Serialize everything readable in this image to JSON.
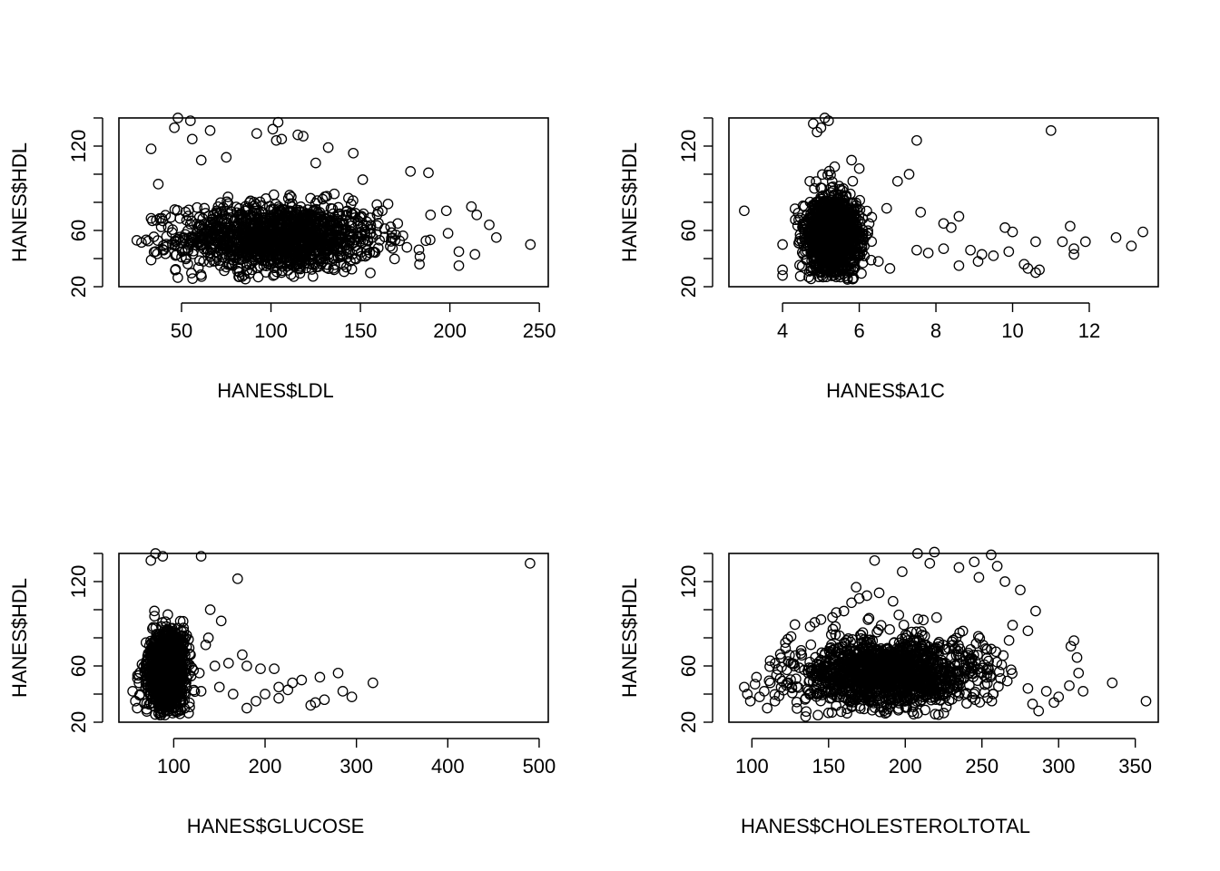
{
  "figure": {
    "background": "#ffffff",
    "ink": "#000000"
  },
  "chart_data": [
    {
      "type": "scatter",
      "xlabel": "HANES$LDL",
      "ylabel": "HANES$HDL",
      "xlim": [
        15,
        255
      ],
      "ylim": [
        20,
        140
      ],
      "xticks": [
        50,
        100,
        150,
        200,
        250
      ],
      "yticks": [
        20,
        60,
        120
      ],
      "ygrid_ticks": [
        20,
        40,
        60,
        80,
        100,
        120,
        140
      ],
      "cluster": {
        "x_mean": 105,
        "x_sd": 28,
        "x_min": 25,
        "x_max": 190,
        "y_mean": 55,
        "y_sd": 12,
        "y_min": 25,
        "y_max": 100,
        "n": 1400
      },
      "outliers": [
        [
          48,
          140
        ],
        [
          55,
          138
        ],
        [
          46,
          133
        ],
        [
          66,
          131
        ],
        [
          104,
          137
        ],
        [
          101,
          132
        ],
        [
          92,
          129
        ],
        [
          115,
          128
        ],
        [
          118,
          127
        ],
        [
          103,
          124
        ],
        [
          106,
          125
        ],
        [
          33,
          118
        ],
        [
          56,
          125
        ],
        [
          132,
          119
        ],
        [
          146,
          115
        ],
        [
          75,
          112
        ],
        [
          61,
          110
        ],
        [
          125,
          108
        ],
        [
          178,
          102
        ],
        [
          188,
          101
        ],
        [
          37,
          93
        ],
        [
          212,
          77
        ],
        [
          215,
          71
        ],
        [
          222,
          64
        ],
        [
          226,
          55
        ],
        [
          245,
          50
        ],
        [
          25,
          53
        ],
        [
          33,
          39
        ],
        [
          198,
          74
        ],
        [
          199,
          58
        ],
        [
          205,
          45
        ],
        [
          205,
          35
        ],
        [
          214,
          43
        ],
        [
          183,
          36
        ],
        [
          176,
          48
        ],
        [
          40,
          46
        ]
      ]
    },
    {
      "type": "scatter",
      "xlabel": "HANES$A1C",
      "ylabel": "HANES$HDL",
      "xlim": [
        2.6,
        13.8
      ],
      "ylim": [
        20,
        140
      ],
      "xticks": [
        4,
        6,
        8,
        10,
        12
      ],
      "yticks": [
        20,
        60,
        120
      ],
      "ygrid_ticks": [
        20,
        40,
        60,
        80,
        100,
        120,
        140
      ],
      "cluster": {
        "x_mean": 5.3,
        "x_sd": 0.35,
        "x_min": 4.3,
        "x_max": 6.8,
        "y_mean": 56,
        "y_sd": 14,
        "y_min": 25,
        "y_max": 115,
        "n": 1400
      },
      "outliers": [
        [
          3,
          74
        ],
        [
          5.1,
          140
        ],
        [
          5.2,
          138
        ],
        [
          4.8,
          136
        ],
        [
          5.0,
          133
        ],
        [
          4.9,
          130
        ],
        [
          7.5,
          124
        ],
        [
          11.0,
          131
        ],
        [
          6.0,
          104
        ],
        [
          5.8,
          110
        ],
        [
          7.3,
          100
        ],
        [
          7.0,
          95
        ],
        [
          7.6,
          73
        ],
        [
          8.6,
          70
        ],
        [
          8.2,
          65
        ],
        [
          8.4,
          62
        ],
        [
          9.8,
          62
        ],
        [
          10.0,
          59
        ],
        [
          10.6,
          52
        ],
        [
          11.3,
          52
        ],
        [
          11.5,
          63
        ],
        [
          11.6,
          47
        ],
        [
          11.6,
          43
        ],
        [
          11.9,
          52
        ],
        [
          12.7,
          55
        ],
        [
          13.1,
          49
        ],
        [
          13.4,
          59
        ],
        [
          10.3,
          36
        ],
        [
          10.4,
          33
        ],
        [
          10.6,
          30
        ],
        [
          10.7,
          32
        ],
        [
          9.9,
          45
        ],
        [
          9.5,
          42
        ],
        [
          9.2,
          43
        ],
        [
          9.1,
          38
        ],
        [
          8.9,
          46
        ],
        [
          8.6,
          35
        ],
        [
          8.2,
          47
        ],
        [
          7.8,
          44
        ],
        [
          7.5,
          46
        ],
        [
          4.0,
          32
        ],
        [
          4.0,
          28
        ],
        [
          4.0,
          50
        ],
        [
          6.5,
          38
        ],
        [
          6.8,
          33
        ]
      ]
    },
    {
      "type": "scatter",
      "xlabel": "HANES$GLUCOSE",
      "ylabel": "HANES$HDL",
      "xlim": [
        40,
        510
      ],
      "ylim": [
        20,
        140
      ],
      "xticks": [
        100,
        200,
        300,
        400,
        500
      ],
      "yticks": [
        20,
        60,
        120
      ],
      "ygrid_ticks": [
        20,
        40,
        60,
        80,
        100,
        120,
        140
      ],
      "cluster": {
        "x_mean": 92,
        "x_sd": 10,
        "x_min": 60,
        "x_max": 125,
        "y_mean": 55,
        "y_sd": 14,
        "y_min": 25,
        "y_max": 110,
        "n": 1400
      },
      "outliers": [
        [
          490,
          133
        ],
        [
          130,
          138
        ],
        [
          80,
          140
        ],
        [
          88,
          138
        ],
        [
          170,
          122
        ],
        [
          75,
          135
        ],
        [
          140,
          100
        ],
        [
          152,
          92
        ],
        [
          138,
          80
        ],
        [
          135,
          75
        ],
        [
          145,
          60
        ],
        [
          160,
          62
        ],
        [
          175,
          68
        ],
        [
          180,
          60
        ],
        [
          195,
          58
        ],
        [
          210,
          58
        ],
        [
          215,
          45
        ],
        [
          225,
          43
        ],
        [
          230,
          48
        ],
        [
          240,
          50
        ],
        [
          250,
          32
        ],
        [
          255,
          34
        ],
        [
          260,
          52
        ],
        [
          265,
          36
        ],
        [
          280,
          55
        ],
        [
          285,
          42
        ],
        [
          295,
          38
        ],
        [
          318,
          48
        ],
        [
          215,
          37
        ],
        [
          200,
          40
        ],
        [
          190,
          35
        ],
        [
          180,
          30
        ],
        [
          130,
          42
        ],
        [
          128,
          55
        ],
        [
          150,
          45
        ],
        [
          165,
          40
        ],
        [
          55,
          42
        ],
        [
          58,
          35
        ],
        [
          60,
          30
        ],
        [
          62,
          48
        ]
      ]
    },
    {
      "type": "scatter",
      "xlabel": "HANES$CHOLESTEROLTOTAL",
      "ylabel": "HANES$HDL",
      "xlim": [
        85,
        365
      ],
      "ylim": [
        20,
        140
      ],
      "xticks": [
        100,
        150,
        200,
        250,
        300,
        350
      ],
      "yticks": [
        20,
        60,
        120
      ],
      "ygrid_ticks": [
        20,
        40,
        60,
        80,
        100,
        120,
        140
      ],
      "cluster": {
        "x_mean": 188,
        "x_sd": 32,
        "x_min": 110,
        "x_max": 270,
        "y_mean": 55,
        "y_sd": 13,
        "y_min": 25,
        "y_max": 105,
        "n": 1400
      },
      "outliers": [
        [
          208,
          140
        ],
        [
          219,
          141
        ],
        [
          256,
          139
        ],
        [
          245,
          134
        ],
        [
          235,
          130
        ],
        [
          260,
          131
        ],
        [
          180,
          135
        ],
        [
          216,
          133
        ],
        [
          198,
          127
        ],
        [
          248,
          123
        ],
        [
          265,
          120
        ],
        [
          168,
          116
        ],
        [
          275,
          114
        ],
        [
          285,
          99
        ],
        [
          280,
          85
        ],
        [
          270,
          89
        ],
        [
          310,
          78
        ],
        [
          308,
          74
        ],
        [
          312,
          66
        ],
        [
          313,
          55
        ],
        [
          335,
          48
        ],
        [
          357,
          35
        ],
        [
          316,
          42
        ],
        [
          307,
          46
        ],
        [
          300,
          38
        ],
        [
          292,
          42
        ],
        [
          287,
          28
        ],
        [
          283,
          33
        ],
        [
          280,
          44
        ],
        [
          297,
          34
        ],
        [
          95,
          45
        ],
        [
          97,
          40
        ],
        [
          99,
          35
        ],
        [
          102,
          47
        ],
        [
          103,
          52
        ],
        [
          105,
          38
        ],
        [
          108,
          42
        ],
        [
          110,
          30
        ],
        [
          112,
          48
        ],
        [
          115,
          35
        ],
        [
          135,
          24
        ],
        [
          138,
          88
        ],
        [
          141,
          91
        ],
        [
          145,
          93
        ],
        [
          155,
          98
        ],
        [
          160,
          99
        ],
        [
          165,
          105
        ],
        [
          170,
          108
        ],
        [
          175,
          110
        ],
        [
          183,
          112
        ],
        [
          192,
          106
        ]
      ]
    }
  ]
}
